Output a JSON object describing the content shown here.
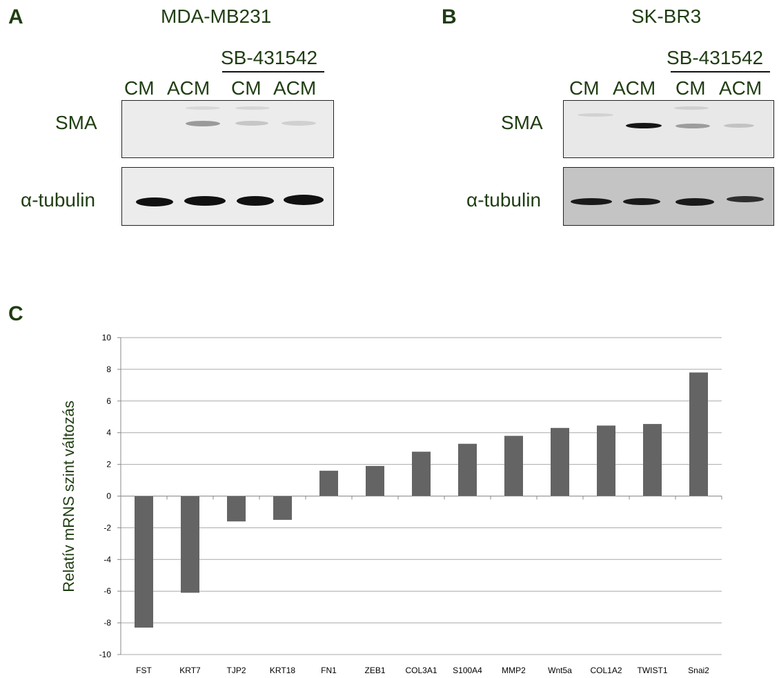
{
  "panels": {
    "a": {
      "letter": "A",
      "cell_line": "MDA-MB231",
      "inhibitor": "SB-431542",
      "lanes": [
        "CM",
        "ACM",
        "CM",
        "ACM"
      ],
      "rows": [
        "SMA",
        "α-tubulin"
      ]
    },
    "b": {
      "letter": "B",
      "cell_line": "SK-BR3",
      "inhibitor": "SB-431542",
      "lanes": [
        "CM",
        "ACM",
        "CM",
        "ACM"
      ],
      "rows": [
        "SMA",
        "α-tubulin"
      ]
    },
    "c": {
      "letter": "C"
    }
  },
  "chart_data": {
    "type": "bar",
    "title": "",
    "xlabel": "",
    "ylabel": "Relatív mRNS szint változás",
    "categories": [
      "FST",
      "KRT7",
      "TJP2",
      "KRT18",
      "FN1",
      "ZEB1",
      "COL3A1",
      "S100A4",
      "MMP2",
      "Wnt5a",
      "COL1A2",
      "TWIST1",
      "Snai2"
    ],
    "values": [
      -8.3,
      -6.1,
      -1.6,
      -1.5,
      1.6,
      1.9,
      2.8,
      3.3,
      3.8,
      4.3,
      4.45,
      4.55,
      7.8
    ],
    "ylim": [
      -10,
      10
    ],
    "yticks": [
      10,
      8,
      6,
      4,
      2,
      0,
      -2,
      -4,
      -6,
      -8,
      -10
    ],
    "grid": true,
    "legend": "none",
    "bar_color": "#646464",
    "grid_color": "#a9a9a9"
  }
}
